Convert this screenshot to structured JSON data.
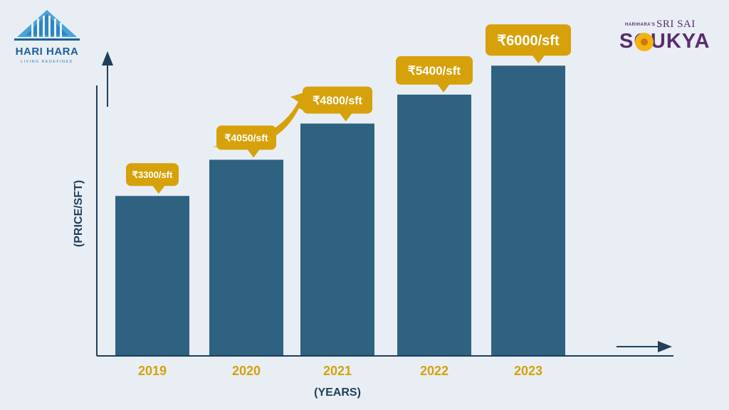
{
  "brand": {
    "left_name": "HARI HARA",
    "left_tagline": "LIVING REDEFINED",
    "right_prefix": "HARIHARA'S",
    "right_sub": "SRI SAI",
    "right_name": "SOUKYA"
  },
  "colors": {
    "bar": "#2f6281",
    "callout": "#d6a10a",
    "label": "#d6a10a",
    "axis": "#1f3f5c",
    "background": "#e8eef4"
  },
  "chart_data": {
    "type": "bar",
    "title": "",
    "xlabel": "(YEARS)",
    "ylabel": "(PRICE/SFT)",
    "ylim": [
      0,
      6800
    ],
    "grid": false,
    "categories": [
      "2019",
      "2020",
      "2021",
      "2022",
      "2023"
    ],
    "values": [
      3300,
      4050,
      4800,
      5400,
      6000
    ],
    "data_labels": [
      "₹3300/sft",
      "₹4050/sft",
      "₹4800/sft",
      "₹5400/sft",
      "₹6000/sft"
    ]
  }
}
